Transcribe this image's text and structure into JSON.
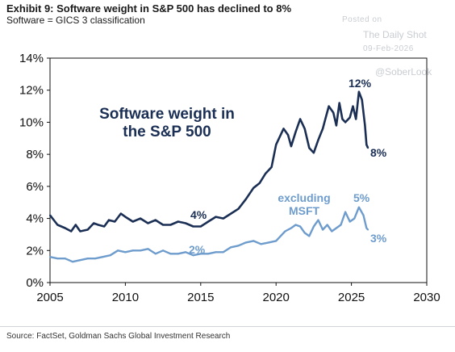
{
  "header": {
    "title": "Exhibit 9: Software weight in S&P 500 has declined to 8%",
    "subtitle": "Software = GICS 3 classification"
  },
  "watermark": {
    "posted_on": "Posted on",
    "publication": "The Daily Shot",
    "date": "09-Feb-2026",
    "handle": "@SoberLook"
  },
  "footer": {
    "source": "Source: FactSet, Goldman Sachs Global Investment Research"
  },
  "colors": {
    "software": "#1b2f55",
    "excluding_msft": "#6e9ccd"
  },
  "chart_data": {
    "type": "line",
    "title": "Exhibit 9: Software weight in S&P 500 has declined to 8%",
    "subtitle": "Software = GICS 3 classification",
    "xlim": [
      2005,
      2030
    ],
    "ylim": [
      0,
      14
    ],
    "x_ticks": [
      "2005",
      "2010",
      "2015",
      "2020",
      "2025",
      "2030"
    ],
    "y_ticks": [
      "0%",
      "2%",
      "4%",
      "6%",
      "8%",
      "10%",
      "12%",
      "14%"
    ],
    "grid": false,
    "series": [
      {
        "id": "software",
        "x": [
          2005.0,
          2005.5,
          2006.0,
          2006.4,
          2006.7,
          2007.0,
          2007.5,
          2007.9,
          2008.2,
          2008.6,
          2008.9,
          2009.3,
          2009.7,
          2010.0,
          2010.5,
          2011.0,
          2011.5,
          2012.0,
          2012.5,
          2013.0,
          2013.5,
          2014.0,
          2014.5,
          2015.0,
          2015.5,
          2016.0,
          2016.5,
          2017.0,
          2017.5,
          2018.0,
          2018.5,
          2018.9,
          2019.3,
          2019.7,
          2020.0,
          2020.2,
          2020.5,
          2020.8,
          2021.0,
          2021.3,
          2021.6,
          2021.9,
          2022.2,
          2022.5,
          2022.8,
          2023.1,
          2023.3,
          2023.5,
          2023.8,
          2024.0,
          2024.2,
          2024.4,
          2024.6,
          2024.9,
          2025.1,
          2025.3,
          2025.5,
          2025.7,
          2025.9,
          2026.0,
          2026.1
        ],
        "values": [
          4.2,
          3.6,
          3.4,
          3.2,
          3.6,
          3.2,
          3.3,
          3.7,
          3.6,
          3.5,
          3.9,
          3.8,
          4.3,
          4.1,
          3.8,
          4.0,
          3.7,
          3.9,
          3.6,
          3.6,
          3.8,
          3.7,
          3.5,
          3.5,
          3.8,
          4.1,
          4.0,
          4.3,
          4.6,
          5.2,
          5.9,
          6.2,
          6.8,
          7.2,
          8.6,
          9.0,
          9.6,
          9.2,
          8.5,
          9.4,
          10.2,
          9.6,
          8.4,
          8.1,
          8.9,
          9.6,
          10.3,
          11.0,
          10.6,
          9.8,
          11.2,
          10.2,
          10.0,
          10.3,
          11.0,
          10.2,
          11.9,
          11.4,
          9.8,
          8.6,
          8.4
        ]
      },
      {
        "id": "excluding_msft",
        "x": [
          2005.0,
          2005.5,
          2006.0,
          2006.5,
          2007.0,
          2007.5,
          2008.0,
          2008.5,
          2009.0,
          2009.5,
          2010.0,
          2010.5,
          2011.0,
          2011.5,
          2012.0,
          2012.5,
          2013.0,
          2013.5,
          2014.0,
          2014.5,
          2015.0,
          2015.5,
          2016.0,
          2016.5,
          2017.0,
          2017.5,
          2018.0,
          2018.5,
          2019.0,
          2019.5,
          2020.0,
          2020.3,
          2020.6,
          2021.0,
          2021.3,
          2021.6,
          2021.9,
          2022.2,
          2022.5,
          2022.8,
          2023.1,
          2023.4,
          2023.7,
          2024.0,
          2024.3,
          2024.6,
          2024.9,
          2025.2,
          2025.5,
          2025.8,
          2026.0,
          2026.1
        ],
        "values": [
          1.6,
          1.5,
          1.5,
          1.3,
          1.4,
          1.5,
          1.5,
          1.6,
          1.7,
          2.0,
          1.9,
          2.0,
          2.0,
          2.1,
          1.8,
          2.0,
          1.8,
          1.8,
          1.9,
          1.7,
          1.8,
          1.8,
          1.9,
          1.9,
          2.2,
          2.3,
          2.5,
          2.6,
          2.4,
          2.5,
          2.6,
          2.9,
          3.2,
          3.4,
          3.6,
          3.5,
          3.1,
          2.9,
          3.5,
          3.9,
          3.3,
          3.6,
          3.2,
          3.4,
          3.6,
          4.4,
          3.8,
          4.0,
          4.7,
          4.2,
          3.4,
          3.3
        ]
      }
    ],
    "annotations": {
      "software_label_line1": "Software weight in",
      "software_label_line2": "the S&P 500",
      "excl_label_line1": "excluding",
      "excl_label_line2": "MSFT",
      "sw_2015": "4%",
      "sw_peak": "12%",
      "sw_end": "8%",
      "ex_2015": "2%",
      "ex_peak": "5%",
      "ex_end": "3%"
    }
  }
}
